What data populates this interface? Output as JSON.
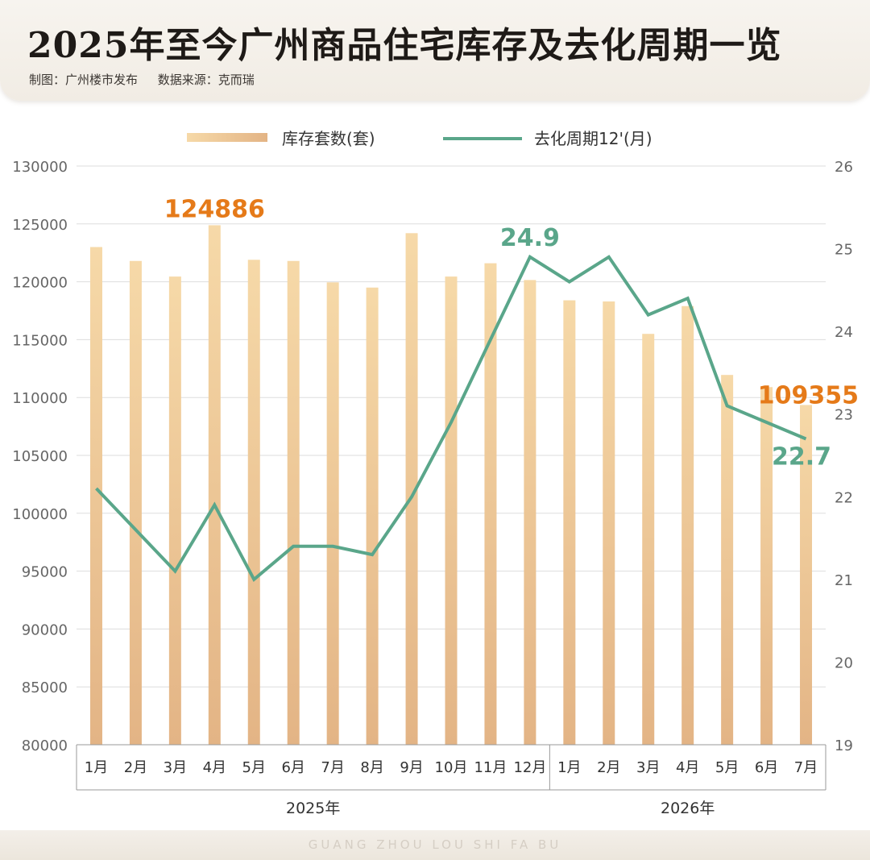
{
  "header": {
    "title": "2025年至今广州商品住宅库存及去化周期一览",
    "credit": "制图：广州楼市发布",
    "source": "数据来源：克而瑞"
  },
  "footer": {
    "text": "GUANG ZHOU LOU SHI FA BU"
  },
  "colors": {
    "bar_top": "#f6d9a8",
    "bar_bottom": "#e3b485",
    "line": "#5aa68a",
    "highlight": "#e57a19",
    "grid": "#dddddd",
    "axis_text": "#666666"
  },
  "chart_data": {
    "type": "bar",
    "categories": [
      "1月",
      "2月",
      "3月",
      "4月",
      "5月",
      "6月",
      "7月",
      "8月",
      "9月",
      "10月",
      "11月",
      "12月",
      "1月",
      "2月",
      "3月",
      "4月",
      "5月",
      "6月",
      "7月"
    ],
    "groups": [
      {
        "label": "2025年",
        "count": 12
      },
      {
        "label": "2026年",
        "count": 7
      }
    ],
    "series": [
      {
        "name": "库存套数(套)",
        "type": "bar",
        "axis": "left",
        "values": [
          123000,
          121800,
          120450,
          124886,
          121900,
          121800,
          119950,
          119500,
          124200,
          120450,
          121600,
          120150,
          118400,
          118300,
          115500,
          117900,
          111950,
          110900,
          109355
        ]
      },
      {
        "name": "去化周期12'(月)",
        "type": "line",
        "axis": "right",
        "values": [
          22.1,
          21.6,
          21.1,
          21.9,
          21.0,
          21.4,
          21.4,
          21.3,
          22.0,
          22.9,
          23.9,
          24.9,
          24.6,
          24.9,
          24.2,
          24.4,
          23.1,
          22.9,
          22.7
        ]
      }
    ],
    "y_left": {
      "min": 80000,
      "max": 130000,
      "ticks": [
        80000,
        85000,
        90000,
        95000,
        100000,
        105000,
        110000,
        115000,
        120000,
        125000,
        130000
      ]
    },
    "y_right": {
      "min": 19,
      "max": 26,
      "ticks": [
        19,
        20,
        21,
        22,
        23,
        24,
        25,
        26
      ]
    },
    "annotations": [
      {
        "series": 0,
        "index": 3,
        "text": "124886"
      },
      {
        "series": 0,
        "index": 18,
        "text": "109355"
      },
      {
        "series": 1,
        "index": 11,
        "text": "24.9"
      },
      {
        "series": 1,
        "index": 18,
        "text": "22.7"
      }
    ],
    "legend": "top-center",
    "grid": true
  }
}
